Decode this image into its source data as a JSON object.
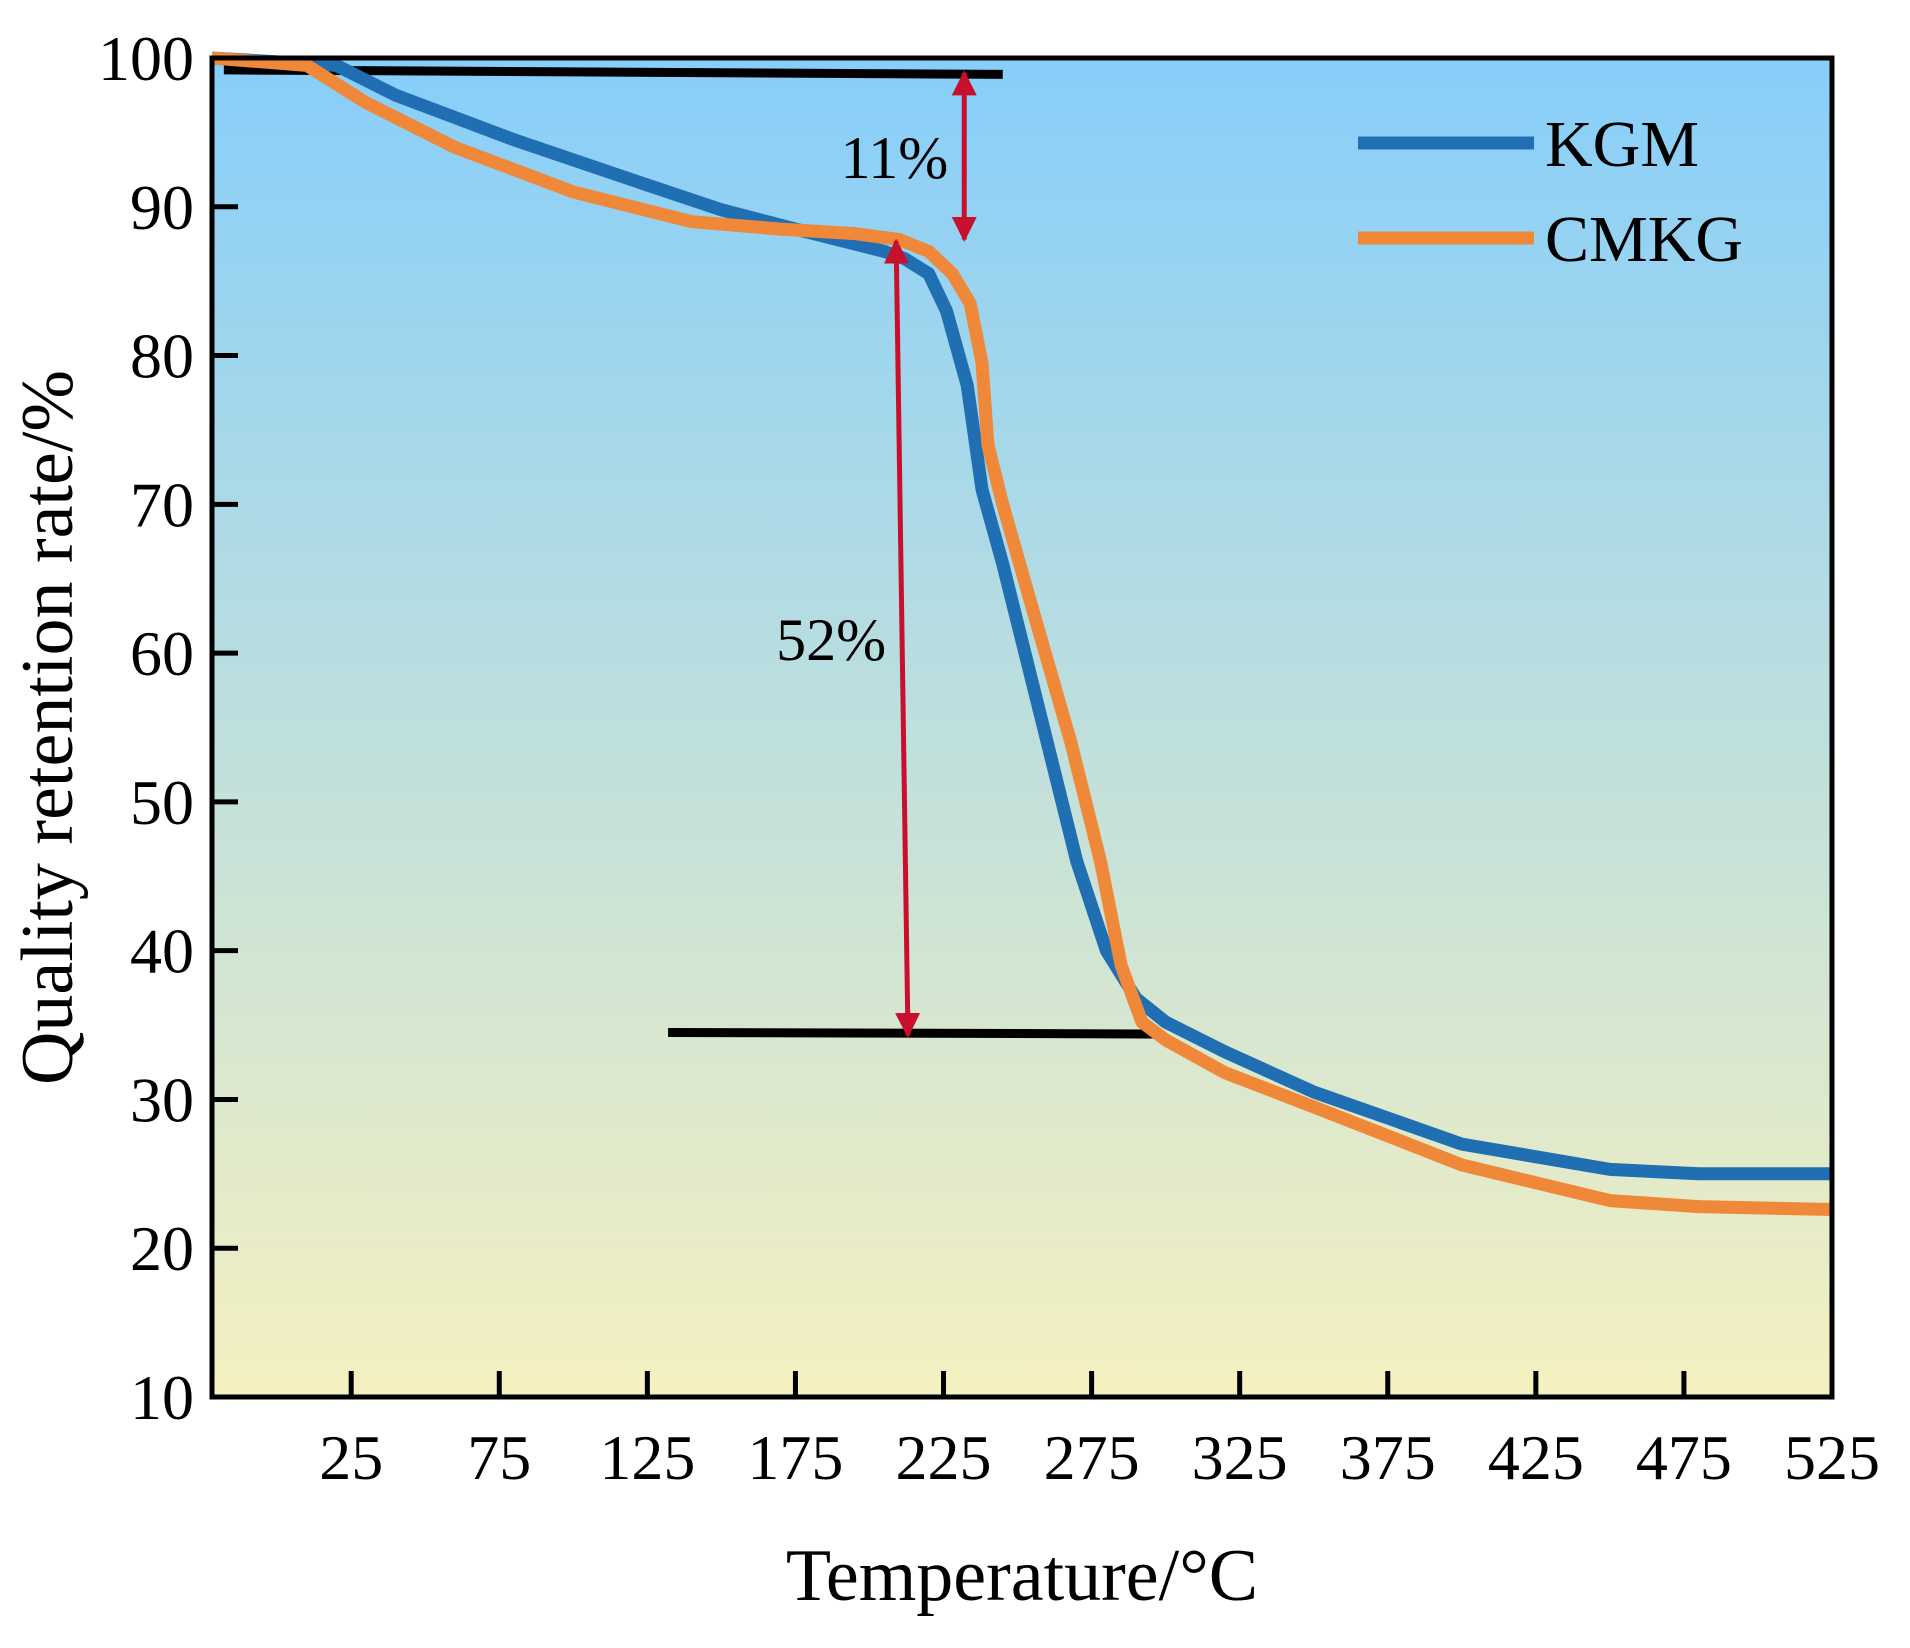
{
  "chart_data": {
    "type": "line",
    "title": "",
    "xlabel": "Temperature/°C",
    "ylabel": "Quality retention rate/%",
    "xlim": [
      -22,
      525
    ],
    "ylim": [
      10,
      100
    ],
    "xticks": [
      25,
      75,
      125,
      175,
      225,
      275,
      325,
      375,
      425,
      475,
      525
    ],
    "yticks": [
      10,
      20,
      30,
      40,
      50,
      60,
      70,
      80,
      90,
      100
    ],
    "grid": false,
    "legend_position": "top-right",
    "background_gradient": [
      "#87cefa",
      "#f5f0c0"
    ],
    "series": [
      {
        "name": "KGM",
        "color": "#1f6fb2",
        "x": [
          -22,
          20,
          40,
          80,
          120,
          150,
          175,
          195,
          205,
          212,
          220,
          226,
          233,
          238,
          245,
          255,
          270,
          280,
          290,
          300,
          320,
          350,
          400,
          450,
          480,
          525
        ],
        "y": [
          100,
          99.5,
          97.5,
          94.5,
          91.8,
          89.8,
          88.5,
          87.5,
          87,
          86.5,
          85.5,
          83,
          78,
          71,
          66,
          58,
          46,
          40,
          36.8,
          35.2,
          33.2,
          30.5,
          27,
          25.3,
          25,
          25
        ]
      },
      {
        "name": "CMKG",
        "color": "#f0883a",
        "x": [
          -22,
          10,
          30,
          60,
          100,
          140,
          170,
          195,
          210,
          220,
          228,
          234,
          238,
          240,
          245,
          255,
          268,
          278,
          285,
          292,
          300,
          320,
          350,
          400,
          450,
          480,
          525
        ],
        "y": [
          100,
          99.5,
          97,
          94,
          91,
          89,
          88.5,
          88.2,
          87.8,
          87,
          85.5,
          83.5,
          79.5,
          74,
          70,
          63,
          54,
          46,
          39,
          35.2,
          34,
          31.8,
          29.5,
          25.6,
          23.2,
          22.8,
          22.6
        ]
      }
    ],
    "annotations": [
      {
        "label": "11%",
        "from": [
          232,
          99.0
        ],
        "to": [
          232,
          87.8
        ]
      },
      {
        "label": "52%",
        "from": [
          209,
          87.7
        ],
        "to": [
          213,
          34.3
        ]
      }
    ],
    "reference_lines": [
      {
        "x": [
          -18,
          245
        ],
        "y": [
          99.2,
          98.9
        ]
      },
      {
        "x": [
          132,
          297
        ],
        "y": [
          34.5,
          34.4
        ]
      }
    ]
  }
}
